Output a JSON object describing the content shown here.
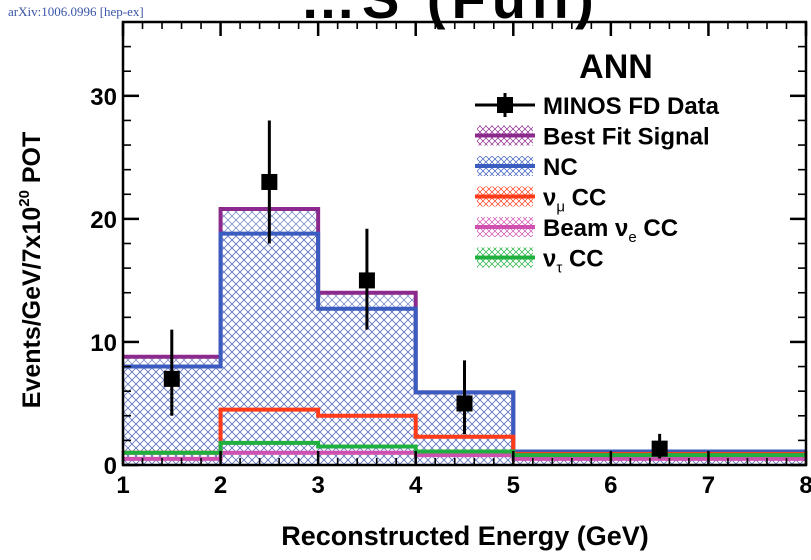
{
  "arxiv_stamp": "arXiv:1006.0996 [hep-ex]",
  "top_banner": "…S (Full)",
  "chart_data": {
    "type": "histogram",
    "title": "ANN",
    "xlabel": "Reconstructed Energy (GeV)",
    "ylabel": "Events/GeV/7x10^20 POT",
    "xlim": [
      1,
      8
    ],
    "ylim": [
      0,
      36
    ],
    "x_ticks": [
      1,
      2,
      3,
      4,
      5,
      6,
      7,
      8
    ],
    "y_ticks": [
      0,
      10,
      20,
      30
    ],
    "bin_edges": [
      1,
      2,
      3,
      4,
      5,
      8
    ],
    "series": [
      {
        "name": "Best Fit Signal",
        "color": "#8b2a8c",
        "hatched": true,
        "values": [
          8.8,
          20.8,
          14.0,
          5.9,
          1.1
        ]
      },
      {
        "name": "NC",
        "color": "#3a5bc0",
        "hatched": true,
        "values": [
          8.0,
          18.8,
          12.7,
          5.9,
          1.1
        ]
      },
      {
        "name": "ν_μ CC",
        "color": "#ff3b1a",
        "hatched": false,
        "values": [
          1.0,
          4.5,
          4.0,
          2.3,
          0.9
        ]
      },
      {
        "name": "Beam ν_e CC",
        "color": "#d050b0",
        "hatched": false,
        "values": [
          0.5,
          1.0,
          1.0,
          0.8,
          0.5
        ]
      },
      {
        "name": "ν_τ CC",
        "color": "#20b040",
        "hatched": false,
        "values": [
          1.0,
          1.8,
          1.5,
          1.1,
          0.8
        ]
      }
    ],
    "data_points": {
      "name": "MINOS FD Data",
      "color": "#000000",
      "points": [
        {
          "x": 1.5,
          "y": 7,
          "err_lo": 3.0,
          "err_hi": 4.0
        },
        {
          "x": 2.5,
          "y": 23,
          "err_lo": 5.0,
          "err_hi": 5.0
        },
        {
          "x": 3.5,
          "y": 15,
          "err_lo": 4.0,
          "err_hi": 4.2
        },
        {
          "x": 4.5,
          "y": 5,
          "err_lo": 2.5,
          "err_hi": 3.5
        },
        {
          "x": 6.5,
          "y": 1.33,
          "err_lo": 0.8,
          "err_hi": 1.2
        }
      ]
    },
    "legend": {
      "position": "top-right",
      "items": [
        {
          "label": "MINOS FD Data",
          "main": "MINOS FD Data",
          "sub": "",
          "suffix": "",
          "style": "marker",
          "color": "#000000"
        },
        {
          "label": "Best Fit Signal",
          "main": "Best Fit Signal",
          "sub": "",
          "suffix": "",
          "style": "hatch",
          "color": "#8b2a8c"
        },
        {
          "label": "NC",
          "main": "NC",
          "sub": "",
          "suffix": "",
          "style": "hatch",
          "color": "#3a5bc0"
        },
        {
          "label": "ν_μ CC",
          "main": "ν",
          "sub": "μ",
          "suffix": " CC",
          "style": "hatch",
          "color": "#ff3b1a"
        },
        {
          "label": "Beam ν_e CC",
          "main": "Beam ν",
          "sub": "e",
          "suffix": " CC",
          "style": "hatch",
          "color": "#d050b0"
        },
        {
          "label": "ν_τ CC",
          "main": "ν",
          "sub": "τ",
          "suffix": " CC",
          "style": "hatch",
          "color": "#20b040"
        }
      ]
    }
  }
}
